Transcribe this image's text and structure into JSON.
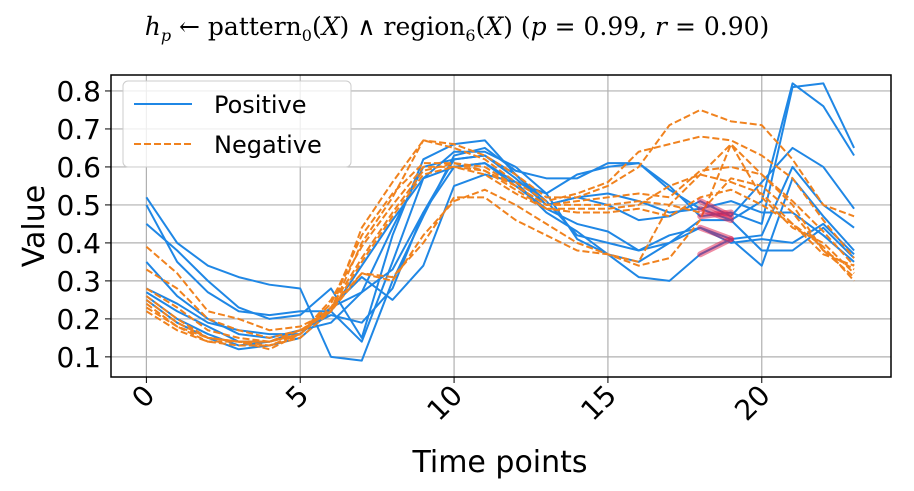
{
  "title": {
    "h": "h",
    "h_sub": "p",
    "arrow": " ← pattern",
    "p_sub": "0",
    "part2": "(",
    "X1": "X",
    "part3": ") ∧ region",
    "r_sub": "6",
    "part4": "(",
    "X2": "X",
    "part5": ") (",
    "p": "p",
    "pval": " = 0.99, ",
    "r": "r",
    "rval": " = 0.90)"
  },
  "chart_data": {
    "type": "line",
    "xlabel": "Time points",
    "ylabel": "Value",
    "xlim": [
      -1.15,
      24.2
    ],
    "ylim": [
      0.047,
      0.842
    ],
    "xticks": [
      0,
      5,
      10,
      15,
      20
    ],
    "yticks": [
      0.1,
      0.2,
      0.3,
      0.4,
      0.5,
      0.6,
      0.7,
      0.8
    ],
    "ytick_labels": [
      "0.1",
      "0.2",
      "0.3",
      "0.4",
      "0.5",
      "0.6",
      "0.7",
      "0.8"
    ],
    "xtick_labels": [
      "0",
      "5",
      "10",
      "15",
      "20"
    ],
    "grid": true,
    "legend": {
      "placement": "top-left",
      "entries": [
        "Positive",
        "Negative"
      ]
    },
    "colors": {
      "positive": "#1f87e5",
      "negative": "#f0821e",
      "highlight": "#e0194a"
    },
    "highlight": {
      "x_range": [
        18,
        19
      ],
      "series_class": "Positive",
      "series_indices": [
        0,
        1,
        2,
        3,
        4
      ]
    },
    "series": [
      {
        "class": "Positive",
        "values": [
          0.52,
          0.4,
          0.34,
          0.31,
          0.29,
          0.28,
          0.1,
          0.09,
          0.3,
          0.47,
          0.63,
          0.65,
          0.59,
          0.57,
          0.57,
          0.61,
          0.61,
          0.54,
          0.49,
          0.46,
          0.51,
          0.82,
          0.76,
          0.63
        ]
      },
      {
        "class": "Positive",
        "values": [
          0.5,
          0.35,
          0.27,
          0.22,
          0.21,
          0.22,
          0.22,
          0.14,
          0.35,
          0.57,
          0.64,
          0.64,
          0.6,
          0.53,
          0.58,
          0.6,
          0.61,
          0.55,
          0.47,
          0.48,
          0.45,
          0.81,
          0.82,
          0.65
        ]
      },
      {
        "class": "Positive",
        "values": [
          0.45,
          0.38,
          0.3,
          0.23,
          0.2,
          0.21,
          0.28,
          0.15,
          0.42,
          0.62,
          0.66,
          0.67,
          0.58,
          0.5,
          0.52,
          0.5,
          0.46,
          0.47,
          0.51,
          0.47,
          0.56,
          0.65,
          0.6,
          0.49
        ]
      },
      {
        "class": "Positive",
        "values": [
          0.35,
          0.26,
          0.2,
          0.16,
          0.15,
          0.17,
          0.21,
          0.19,
          0.28,
          0.48,
          0.62,
          0.63,
          0.58,
          0.51,
          0.42,
          0.4,
          0.38,
          0.4,
          0.44,
          0.41,
          0.42,
          0.6,
          0.5,
          0.44
        ]
      },
      {
        "class": "Positive",
        "values": [
          0.28,
          0.24,
          0.19,
          0.17,
          0.16,
          0.16,
          0.23,
          0.27,
          0.33,
          0.48,
          0.6,
          0.61,
          0.56,
          0.53,
          0.41,
          0.37,
          0.31,
          0.3,
          0.37,
          0.41,
          0.34,
          0.57,
          0.47,
          0.38
        ]
      },
      {
        "class": "Positive",
        "values": [
          0.27,
          0.22,
          0.18,
          0.14,
          0.14,
          0.16,
          0.23,
          0.31,
          0.25,
          0.34,
          0.55,
          0.58,
          0.56,
          0.48,
          0.43,
          0.37,
          0.35,
          0.4,
          0.46,
          0.46,
          0.38,
          0.38,
          0.44,
          0.36
        ]
      },
      {
        "class": "Positive",
        "values": [
          0.26,
          0.2,
          0.16,
          0.13,
          0.14,
          0.17,
          0.19,
          0.27,
          0.44,
          0.6,
          0.62,
          0.63,
          0.57,
          0.5,
          0.52,
          0.53,
          0.51,
          0.48,
          0.49,
          0.51,
          0.48,
          0.48,
          0.42,
          0.35
        ]
      },
      {
        "class": "Positive",
        "values": [
          0.25,
          0.19,
          0.15,
          0.12,
          0.13,
          0.15,
          0.22,
          0.34,
          0.46,
          0.57,
          0.6,
          0.61,
          0.55,
          0.49,
          0.45,
          0.43,
          0.38,
          0.42,
          0.44,
          0.4,
          0.41,
          0.4,
          0.45,
          0.37
        ]
      },
      {
        "class": "Negative",
        "values": [
          0.39,
          0.32,
          0.22,
          0.2,
          0.17,
          0.18,
          0.22,
          0.4,
          0.52,
          0.67,
          0.66,
          0.63,
          0.58,
          0.52,
          0.52,
          0.55,
          0.6,
          0.71,
          0.75,
          0.72,
          0.71,
          0.62,
          0.5,
          0.47
        ]
      },
      {
        "class": "Negative",
        "values": [
          0.33,
          0.28,
          0.2,
          0.17,
          0.15,
          0.17,
          0.22,
          0.44,
          0.56,
          0.67,
          0.65,
          0.62,
          0.56,
          0.51,
          0.53,
          0.56,
          0.64,
          0.66,
          0.68,
          0.67,
          0.63,
          0.57,
          0.46,
          0.36
        ]
      },
      {
        "class": "Negative",
        "values": [
          0.28,
          0.23,
          0.17,
          0.15,
          0.14,
          0.17,
          0.22,
          0.32,
          0.31,
          0.4,
          0.52,
          0.52,
          0.46,
          0.42,
          0.38,
          0.37,
          0.35,
          0.5,
          0.58,
          0.66,
          0.58,
          0.51,
          0.43,
          0.34
        ]
      },
      {
        "class": "Negative",
        "values": [
          0.26,
          0.2,
          0.15,
          0.14,
          0.12,
          0.16,
          0.23,
          0.32,
          0.3,
          0.42,
          0.51,
          0.54,
          0.5,
          0.45,
          0.4,
          0.37,
          0.34,
          0.36,
          0.46,
          0.66,
          0.52,
          0.44,
          0.4,
          0.32
        ]
      },
      {
        "class": "Negative",
        "values": [
          0.25,
          0.19,
          0.15,
          0.14,
          0.14,
          0.16,
          0.24,
          0.42,
          0.53,
          0.61,
          0.61,
          0.59,
          0.55,
          0.5,
          0.5,
          0.5,
          0.51,
          0.5,
          0.48,
          0.57,
          0.55,
          0.48,
          0.38,
          0.33
        ]
      },
      {
        "class": "Negative",
        "values": [
          0.24,
          0.18,
          0.14,
          0.14,
          0.13,
          0.16,
          0.25,
          0.39,
          0.5,
          0.6,
          0.6,
          0.58,
          0.53,
          0.49,
          0.49,
          0.49,
          0.5,
          0.55,
          0.58,
          0.56,
          0.53,
          0.45,
          0.37,
          0.34
        ]
      },
      {
        "class": "Negative",
        "values": [
          0.23,
          0.18,
          0.15,
          0.14,
          0.14,
          0.16,
          0.23,
          0.36,
          0.48,
          0.59,
          0.61,
          0.6,
          0.55,
          0.5,
          0.51,
          0.52,
          0.53,
          0.52,
          0.59,
          0.6,
          0.58,
          0.5,
          0.38,
          0.31
        ]
      },
      {
        "class": "Negative",
        "values": [
          0.22,
          0.17,
          0.14,
          0.13,
          0.13,
          0.15,
          0.22,
          0.35,
          0.47,
          0.58,
          0.6,
          0.59,
          0.54,
          0.49,
          0.48,
          0.48,
          0.49,
          0.47,
          0.52,
          0.54,
          0.5,
          0.45,
          0.39,
          0.3
        ]
      }
    ]
  }
}
